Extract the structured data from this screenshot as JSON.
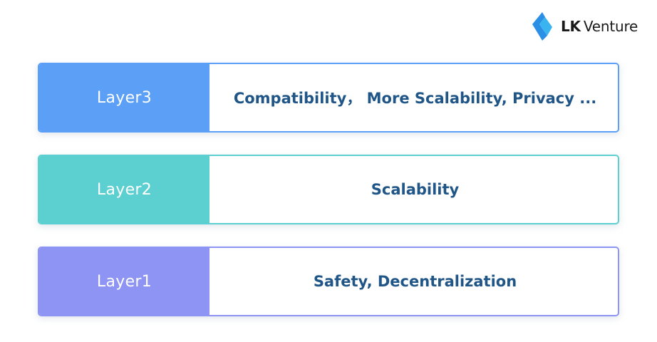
{
  "brand": {
    "name_bold": "LK",
    "name_rest": "Venture",
    "icon": "lk-logo-icon"
  },
  "layers": [
    {
      "label": "Layer3",
      "description": "Compatibility， More Scalability, Privacy ...",
      "color": "#5b9ff7"
    },
    {
      "label": "Layer2",
      "description": "Scalability",
      "color": "#5ccfd0"
    },
    {
      "label": "Layer1",
      "description": "Safety, Decentralization",
      "color": "#8e94f4"
    }
  ]
}
